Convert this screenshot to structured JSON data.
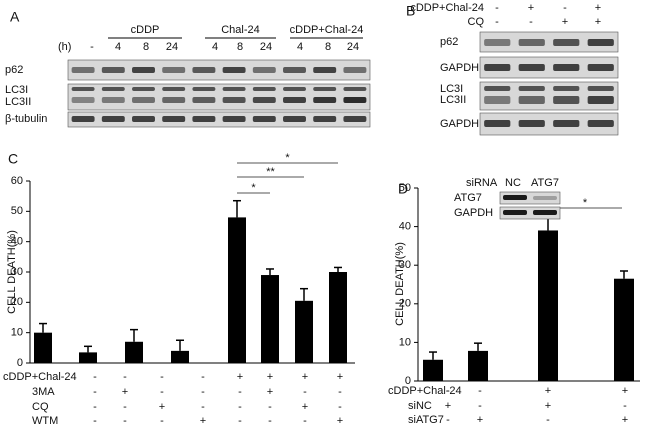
{
  "blots": {
    "A": {
      "label": "A",
      "hours_label": "(h)",
      "groups": [
        "cDDP",
        "Chal-24",
        "cDDP+Chal-24"
      ],
      "lanes": [
        "-",
        "4",
        "8",
        "24",
        "4",
        "8",
        "24",
        "4",
        "8",
        "24"
      ],
      "rows": [
        "p62",
        "LC3I",
        "LC3II",
        "β-tubulin"
      ]
    },
    "B": {
      "label": "B",
      "treatments": [
        {
          "name": "cDDP+Chal-24",
          "signs": [
            "-",
            "+",
            "-",
            "+"
          ]
        },
        {
          "name": "CQ",
          "signs": [
            "-",
            "-",
            "+",
            "+"
          ]
        }
      ],
      "rows": [
        "p62",
        "GAPDH",
        "LC3I",
        "LC3II",
        "GAPDH"
      ]
    }
  },
  "chart_data": [
    {
      "type": "bar",
      "panel": "C",
      "ylabel": "CELL DEATH(%)",
      "categories": [
        null,
        null,
        null,
        null,
        null,
        null,
        null,
        null
      ],
      "values": [
        10,
        3.5,
        7,
        4,
        48,
        29,
        20.5,
        30
      ],
      "errors": [
        3,
        2,
        4,
        3.5,
        5.5,
        2,
        4,
        1.5
      ],
      "color": "#000000",
      "ylim": [
        0,
        60
      ],
      "yticks": [
        0,
        10,
        20,
        30,
        40,
        50,
        60
      ],
      "treatments": [
        {
          "name": "cDDP+Chal-24",
          "signs": [
            "-",
            "-",
            "-",
            "-",
            "+",
            "+",
            "+",
            "+"
          ]
        },
        {
          "name": "3MA",
          "signs": [
            "-",
            "+",
            "-",
            "-",
            "-",
            "+",
            "-",
            "-"
          ]
        },
        {
          "name": "CQ",
          "signs": [
            "-",
            "-",
            "+",
            "-",
            "-",
            "-",
            "+",
            "-"
          ]
        },
        {
          "name": "WTM",
          "signs": [
            "-",
            "-",
            "-",
            "+",
            "-",
            "-",
            "-",
            "+"
          ]
        }
      ],
      "annotations": [
        "*",
        "**",
        "*"
      ]
    },
    {
      "type": "bar",
      "panel": "D",
      "ylabel": "CELL DEATH(%)",
      "categories": [
        null,
        null,
        null,
        null
      ],
      "values": [
        5.5,
        7.8,
        39,
        26.5
      ],
      "errors": [
        2,
        2,
        4.5,
        2
      ],
      "color": "#000000",
      "ylim": [
        0,
        50
      ],
      "yticks": [
        0,
        10,
        20,
        30,
        40,
        50
      ],
      "treatments": [
        {
          "name": "cDDP+Chal-24",
          "signs": [
            "-",
            "-",
            "+",
            "+"
          ]
        },
        {
          "name": "siNC",
          "signs": [
            "+",
            "-",
            "+",
            "-"
          ]
        },
        {
          "name": "siATG7",
          "signs": [
            "-",
            "+",
            "-",
            "+"
          ]
        }
      ],
      "annotations": [
        "*"
      ],
      "inset": {
        "header": "siRNA",
        "lanes": [
          "NC",
          "ATG7"
        ],
        "rows": [
          "ATG7",
          "GAPDH"
        ]
      }
    }
  ]
}
